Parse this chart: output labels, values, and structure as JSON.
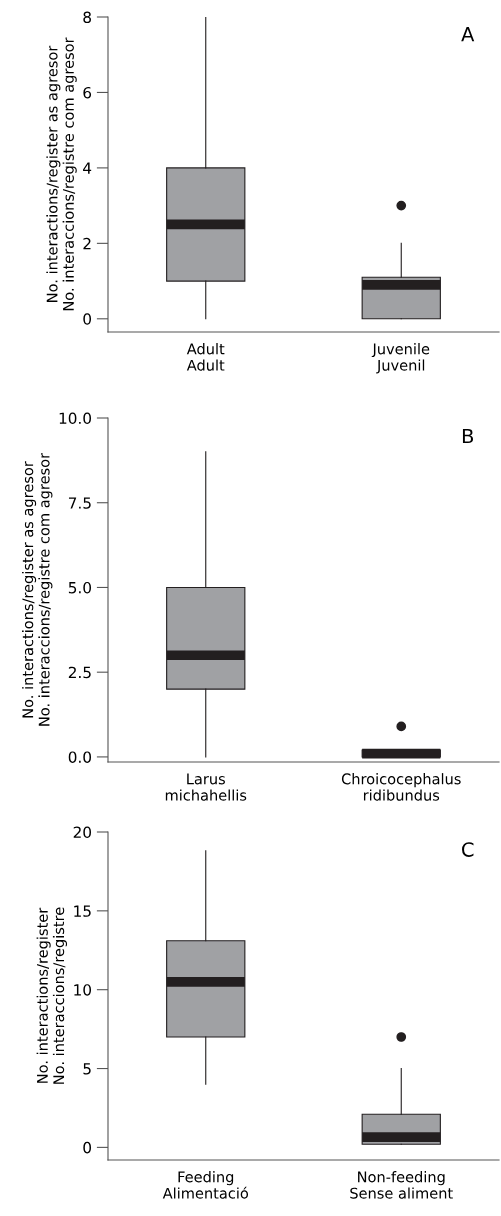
{
  "chart_data": [
    {
      "type": "box",
      "categories": [
        "Adult\nAdult",
        "Juvenile\nJuvenil"
      ],
      "ylabel": "No. interactions/register as agresor\nNo. interaccions/registre com agresor",
      "annotations": [
        "A"
      ],
      "ylim": [
        -0.35,
        8
      ],
      "yticks": [
        0,
        2,
        4,
        6,
        8
      ],
      "color": "#a0a1a4",
      "boxes": [
        {
          "low": 0,
          "q1": 1,
          "median": 2.5,
          "q3": 4,
          "high": 8
        },
        {
          "low": 0,
          "q1": 0,
          "median": 0.9,
          "q3": 1.1,
          "high": 2,
          "outliers": [
            3
          ]
        }
      ]
    },
    {
      "type": "box",
      "categories": [
        "Larus\nmichahellis",
        "Chroicocephalus\nridibundus"
      ],
      "ylabel": "No. interactions/register as agresor\nNo. interaccions/registre com agresor",
      "annotations": [
        "B"
      ],
      "ylim": [
        -0.15,
        10
      ],
      "yticks": [
        {
          "value": 0,
          "label": "0.0"
        },
        2.5,
        {
          "value": 5,
          "label": "5.0"
        },
        7.5,
        {
          "value": 10,
          "label": "10.0"
        }
      ],
      "color": "#a0a1a4",
      "boxes": [
        {
          "low": 0,
          "q1": 2,
          "median": 3,
          "q3": 5,
          "high": 9
        },
        {
          "low": 0,
          "q1": 0,
          "median": 0.1,
          "q3": 0.2,
          "high": 0,
          "outliers": [
            0.9
          ]
        }
      ]
    },
    {
      "type": "box",
      "categories": [
        "Feeding\nAlimentació",
        "Non-feeding\nSense aliment"
      ],
      "ylabel": "No. interactions/register\nNo. interaccions/registre",
      "annotations": [
        "C"
      ],
      "ylim": [
        -0.8,
        20
      ],
      "yticks": [
        0,
        5,
        10,
        15,
        20
      ],
      "color": "#a0a1a4",
      "boxes": [
        {
          "low": 4,
          "q1": 7,
          "median": 10.5,
          "q3": 13.1,
          "high": 18.8
        },
        {
          "low": 0.2,
          "q1": 0.2,
          "median": 0.65,
          "q3": 2.1,
          "high": 5,
          "outliers": [
            7
          ]
        }
      ]
    }
  ]
}
